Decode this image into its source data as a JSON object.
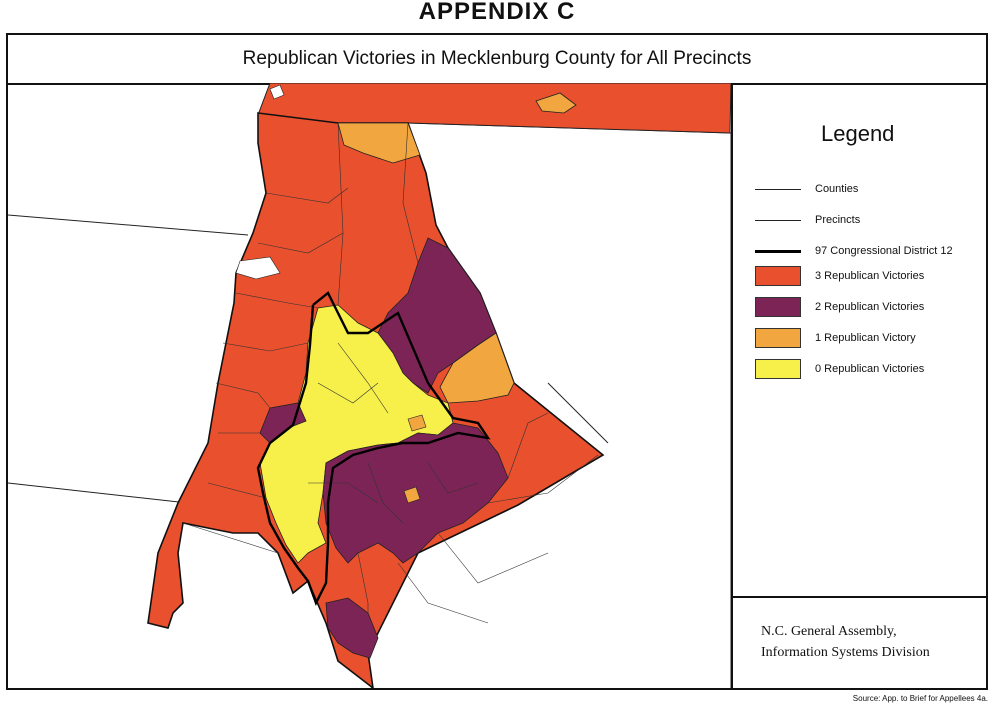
{
  "appendix_label": "APPENDIX C",
  "title": "Republican Victories in Mecklenburg County for All Precincts",
  "legend": {
    "title": "Legend",
    "lines": [
      {
        "label": "Counties",
        "style": "thin"
      },
      {
        "label": "Precincts",
        "style": "thin"
      },
      {
        "label": "97 Congressional District 12",
        "style": "thick"
      }
    ],
    "categories": [
      {
        "label": "3 Republican Victories",
        "color": "#E8502E"
      },
      {
        "label": "2 Republican Victories",
        "color": "#7D2457"
      },
      {
        "label": "1 Republican Victory",
        "color": "#F2A63F"
      },
      {
        "label": "0 Republican Victories",
        "color": "#F7F04A"
      }
    ]
  },
  "credit": {
    "line1": "N.C. General Assembly,",
    "line2": "Information Systems Division"
  },
  "source": "Source: App. to Brief for Appellees 4a."
}
